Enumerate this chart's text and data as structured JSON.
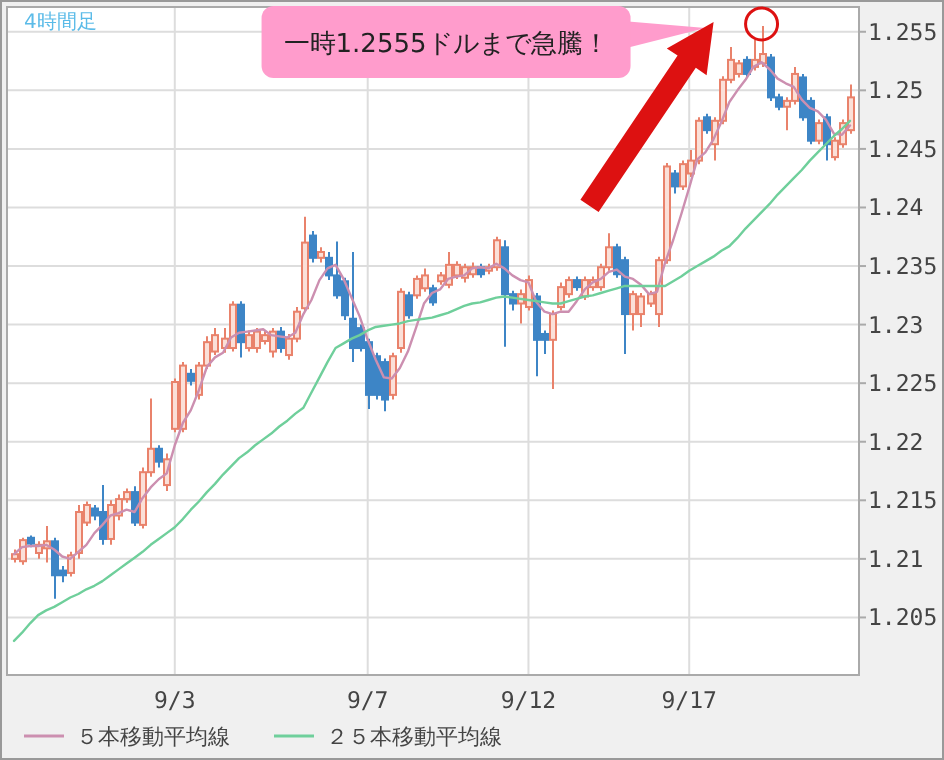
{
  "chart_data": {
    "type": "candlestick",
    "title": "4時間足",
    "annotations": [
      "一時1.2555ドルまで急騰！"
    ],
    "categories": [
      null,
      null,
      null,
      null,
      null,
      null,
      null,
      null,
      null,
      null,
      null,
      null,
      null,
      null,
      null,
      null,
      null,
      null,
      null,
      null,
      "9/3",
      null,
      null,
      null,
      null,
      null,
      null,
      null,
      null,
      null,
      null,
      null,
      null,
      null,
      null,
      null,
      null,
      null,
      null,
      null,
      null,
      null,
      null,
      null,
      "9/7",
      null,
      null,
      null,
      null,
      null,
      null,
      null,
      null,
      null,
      null,
      null,
      null,
      null,
      null,
      null,
      null,
      null,
      null,
      null,
      "9/12",
      null,
      null,
      null,
      null,
      null,
      null,
      null,
      null,
      null,
      null,
      null,
      null,
      null,
      null,
      null,
      null,
      null,
      null,
      null,
      "9/17",
      null,
      null,
      null,
      null,
      null,
      null,
      null,
      null,
      null,
      null,
      null,
      null,
      null,
      null,
      null,
      null,
      null,
      null,
      null,
      null
    ],
    "ohlc": [
      [
        1.21,
        1.2108,
        1.2097,
        1.2104
      ],
      [
        1.2098,
        1.2118,
        1.2095,
        1.2116
      ],
      [
        1.2118,
        1.212,
        1.211,
        1.2113
      ],
      [
        1.2105,
        1.2115,
        1.21,
        1.2112
      ],
      [
        1.2109,
        1.2128,
        1.2097,
        1.2115
      ],
      [
        1.2115,
        1.2118,
        1.2066,
        1.2086
      ],
      [
        1.209,
        1.2094,
        1.208,
        1.2086
      ],
      [
        1.2088,
        1.2106,
        1.2085,
        1.2103
      ],
      [
        1.2105,
        1.2146,
        1.21,
        1.214
      ],
      [
        1.2131,
        1.2149,
        1.2128,
        1.2146
      ],
      [
        1.2143,
        1.2146,
        1.2133,
        1.2137
      ],
      [
        1.214,
        1.2163,
        1.2112,
        1.2117
      ],
      [
        1.2117,
        1.215,
        1.2112,
        1.2146
      ],
      [
        1.2137,
        1.2155,
        1.2133,
        1.2151
      ],
      [
        1.2151,
        1.216,
        1.2148,
        1.2157
      ],
      [
        1.2157,
        1.2162,
        1.2128,
        1.2131
      ],
      [
        1.2129,
        1.2178,
        1.2126,
        1.2174
      ],
      [
        1.2174,
        1.2237,
        1.217,
        1.2194
      ],
      [
        1.2194,
        1.2197,
        1.2178,
        1.2183
      ],
      [
        1.2163,
        1.219,
        1.2158,
        1.2185
      ],
      [
        1.2211,
        1.2254,
        1.2208,
        1.2251
      ],
      [
        1.2211,
        1.2268,
        1.2208,
        1.2265
      ],
      [
        1.2258,
        1.2262,
        1.2248,
        1.2252
      ],
      [
        1.224,
        1.2268,
        1.2236,
        1.2265
      ],
      [
        1.2265,
        1.229,
        1.2262,
        1.2285
      ],
      [
        1.2277,
        1.2297,
        1.2274,
        1.2291
      ],
      [
        1.228,
        1.2297,
        1.2276,
        1.2288
      ],
      [
        1.228,
        1.232,
        1.2277,
        1.2317
      ],
      [
        1.2317,
        1.232,
        1.2272,
        1.2285
      ],
      [
        1.228,
        1.2295,
        1.2277,
        1.2291
      ],
      [
        1.228,
        1.2297,
        1.2276,
        1.2294
      ],
      [
        1.2286,
        1.2295,
        1.2283,
        1.2291
      ],
      [
        1.2277,
        1.2297,
        1.2272,
        1.2294
      ],
      [
        1.2294,
        1.2298,
        1.2276,
        1.228
      ],
      [
        1.2274,
        1.2292,
        1.227,
        1.2288
      ],
      [
        1.2288,
        1.2315,
        1.2285,
        1.2311
      ],
      [
        1.2314,
        1.2392,
        1.2311,
        1.237
      ],
      [
        1.2376,
        1.238,
        1.2353,
        1.2357
      ],
      [
        1.2357,
        1.2366,
        1.2353,
        1.2362
      ],
      [
        1.2357,
        1.2362,
        1.2338,
        1.2342
      ],
      [
        1.2342,
        1.2371,
        1.2322,
        1.2325
      ],
      [
        1.2337,
        1.234,
        1.2304,
        1.2308
      ],
      [
        1.2305,
        1.2362,
        1.2268,
        1.228
      ],
      [
        1.2297,
        1.23,
        1.2277,
        1.228
      ],
      [
        1.2285,
        1.2288,
        1.2228,
        1.224
      ],
      [
        1.2273,
        1.2276,
        1.2236,
        1.224
      ],
      [
        1.2268,
        1.2271,
        1.2226,
        1.2236
      ],
      [
        1.224,
        1.2276,
        1.2236,
        1.2273
      ],
      [
        1.228,
        1.2331,
        1.2276,
        1.2328
      ],
      [
        1.2325,
        1.2328,
        1.2305,
        1.2308
      ],
      [
        1.2325,
        1.2342,
        1.2322,
        1.2339
      ],
      [
        1.2331,
        1.2348,
        1.2328,
        1.2342
      ],
      [
        1.2331,
        1.2334,
        1.2316,
        1.2319
      ],
      [
        1.2337,
        1.2345,
        1.2334,
        1.2342
      ],
      [
        1.2334,
        1.2362,
        1.2331,
        1.2351
      ],
      [
        1.2342,
        1.2354,
        1.2339,
        1.2351
      ],
      [
        1.234,
        1.2352,
        1.2336,
        1.2349
      ],
      [
        1.2343,
        1.2353,
        1.234,
        1.2349
      ],
      [
        1.2349,
        1.2352,
        1.234,
        1.2343
      ],
      [
        1.2346,
        1.2352,
        1.2343,
        1.2349
      ],
      [
        1.2349,
        1.2375,
        1.2346,
        1.2372
      ],
      [
        1.2366,
        1.2372,
        1.2281,
        1.2326
      ],
      [
        1.2326,
        1.2329,
        1.2312,
        1.2318
      ],
      [
        1.2318,
        1.233,
        1.2301,
        1.2326
      ],
      [
        1.2315,
        1.2342,
        1.2312,
        1.2338
      ],
      [
        1.2324,
        1.2327,
        1.2256,
        1.2287
      ],
      [
        1.2292,
        1.2295,
        1.2275,
        1.2287
      ],
      [
        1.2287,
        1.2312,
        1.2245,
        1.2309
      ],
      [
        1.2315,
        1.2336,
        1.2312,
        1.2332
      ],
      [
        1.2326,
        1.2341,
        1.2323,
        1.2338
      ],
      [
        1.2338,
        1.2341,
        1.2329,
        1.2332
      ],
      [
        1.2324,
        1.2341,
        1.2321,
        1.2338
      ],
      [
        1.2332,
        1.2341,
        1.2329,
        1.2338
      ],
      [
        1.2332,
        1.2352,
        1.2329,
        1.2349
      ],
      [
        1.2349,
        1.2378,
        1.2346,
        1.2366
      ],
      [
        1.2366,
        1.2369,
        1.234,
        1.2343
      ],
      [
        1.2355,
        1.2358,
        1.2275,
        1.2309
      ],
      [
        1.2309,
        1.2329,
        1.2295,
        1.2326
      ],
      [
        1.2309,
        1.2327,
        1.2298,
        1.2324
      ],
      [
        1.2318,
        1.2329,
        1.2315,
        1.2326
      ],
      [
        1.2309,
        1.2358,
        1.2298,
        1.2355
      ],
      [
        1.2355,
        1.2438,
        1.2352,
        1.2435
      ],
      [
        1.2429,
        1.2432,
        1.2412,
        1.2418
      ],
      [
        1.2418,
        1.244,
        1.2415,
        1.2437
      ],
      [
        1.2429,
        1.2449,
        1.2426,
        1.244
      ],
      [
        1.244,
        1.2477,
        1.2437,
        1.2474
      ],
      [
        1.2477,
        1.248,
        1.2463,
        1.2466
      ],
      [
        1.2454,
        1.2477,
        1.244,
        1.2474
      ],
      [
        1.2474,
        1.2512,
        1.2471,
        1.2509
      ],
      [
        1.2509,
        1.2537,
        1.2506,
        1.2526
      ],
      [
        1.2514,
        1.2526,
        1.2511,
        1.2523
      ],
      [
        1.2526,
        1.2529,
        1.2511,
        1.2514
      ],
      [
        1.252,
        1.2543,
        1.2517,
        1.2526
      ],
      [
        1.2523,
        1.2555,
        1.252,
        1.2531
      ],
      [
        1.2528,
        1.2531,
        1.2491,
        1.2494
      ],
      [
        1.2494,
        1.2497,
        1.2483,
        1.2486
      ],
      [
        1.2486,
        1.2494,
        1.2466,
        1.2491
      ],
      [
        1.2491,
        1.252,
        1.2488,
        1.2514
      ],
      [
        1.2511,
        1.2514,
        1.2474,
        1.2477
      ],
      [
        1.2491,
        1.2494,
        1.2454,
        1.2457
      ],
      [
        1.2457,
        1.2475,
        1.2454,
        1.2472
      ],
      [
        1.2477,
        1.248,
        1.244,
        1.2454
      ],
      [
        1.2443,
        1.246,
        1.244,
        1.2457
      ],
      [
        1.2454,
        1.2475,
        1.2451,
        1.2472
      ],
      [
        1.2466,
        1.2505,
        1.2463,
        1.2494
      ]
    ],
    "colors": [
      "#e9826b",
      "#e9826b",
      "#3d85c6",
      "#e9826b",
      "#e9826b",
      "#3d85c6",
      "#3d85c6",
      "#e9826b",
      "#e9826b",
      "#e9826b",
      "#3d85c6",
      "#3d85c6",
      "#e9826b",
      "#e9826b",
      "#e9826b",
      "#3d85c6",
      "#e9826b",
      "#e9826b",
      "#3d85c6",
      "#e9826b",
      "#e9826b",
      "#e9826b",
      "#3d85c6",
      "#e9826b",
      "#e9826b",
      "#e9826b",
      "#e9826b",
      "#e9826b",
      "#3d85c6",
      "#e9826b",
      "#e9826b",
      "#e9826b",
      "#e9826b",
      "#3d85c6",
      "#e9826b",
      "#e9826b",
      "#e9826b",
      "#3d85c6",
      "#e9826b",
      "#3d85c6",
      "#3d85c6",
      "#3d85c6",
      "#3d85c6",
      "#3d85c6",
      "#3d85c6",
      "#3d85c6",
      "#3d85c6",
      "#e9826b",
      "#e9826b",
      "#3d85c6",
      "#e9826b",
      "#e9826b",
      "#3d85c6",
      "#e9826b",
      "#e9826b",
      "#e9826b",
      "#e9826b",
      "#e9826b",
      "#3d85c6",
      "#e9826b",
      "#e9826b",
      "#3d85c6",
      "#3d85c6",
      "#e9826b",
      "#e9826b",
      "#3d85c6",
      "#3d85c6",
      "#e9826b",
      "#e9826b",
      "#e9826b",
      "#3d85c6",
      "#e9826b",
      "#e9826b",
      "#e9826b",
      "#e9826b",
      "#3d85c6",
      "#3d85c6",
      "#e9826b",
      "#e9826b",
      "#e9826b",
      "#e9826b",
      "#e9826b",
      "#3d85c6",
      "#e9826b",
      "#e9826b",
      "#e9826b",
      "#3d85c6",
      "#e9826b",
      "#e9826b",
      "#e9826b",
      "#e9826b",
      "#3d85c6",
      "#e9826b",
      "#e9826b",
      "#3d85c6",
      "#3d85c6",
      "#e9826b",
      "#e9826b",
      "#3d85c6",
      "#3d85c6",
      "#e9826b",
      "#3d85c6",
      "#e9826b",
      "#e9826b",
      "#e9826b"
    ],
    "series": [
      {
        "type": "line",
        "name": "５本移動平均線",
        "color": "#cc8fb0",
        "values": [
          1.2104,
          1.211,
          1.2111,
          1.2111,
          1.2112,
          1.2108,
          1.2102,
          1.21,
          1.2106,
          1.2112,
          1.2122,
          1.2129,
          1.2137,
          1.2139,
          1.2142,
          1.214,
          1.2152,
          1.2161,
          1.2168,
          1.2173,
          1.2197,
          1.2216,
          1.2227,
          1.2244,
          1.2264,
          1.2272,
          1.2276,
          1.2289,
          1.2293,
          1.2294,
          1.2295,
          1.2296,
          1.2291,
          1.229,
          1.2289,
          1.2293,
          1.2309,
          1.2321,
          1.2338,
          1.2348,
          1.2351,
          1.2339,
          1.2323,
          1.2307,
          1.2287,
          1.227,
          1.2255,
          1.2254,
          1.2263,
          1.2277,
          1.2297,
          1.2318,
          1.2327,
          1.233,
          1.2339,
          1.2341,
          1.2342,
          1.2348,
          1.2349,
          1.2348,
          1.2352,
          1.2348,
          1.2342,
          1.2338,
          1.2336,
          1.2319,
          1.2311,
          1.2309,
          1.2311,
          1.2311,
          1.232,
          1.233,
          1.2336,
          1.2339,
          1.2345,
          1.2347,
          1.2341,
          1.2339,
          1.2334,
          1.2326,
          1.2328,
          1.2353,
          1.2372,
          1.2394,
          1.2417,
          1.2441,
          1.2447,
          1.2458,
          1.2473,
          1.249,
          1.25,
          1.2509,
          1.252,
          1.2524,
          1.2518,
          1.251,
          1.2506,
          1.2503,
          1.2492,
          1.2485,
          1.2482,
          1.2475,
          1.2463,
          1.2462,
          1.247
        ]
      },
      {
        "type": "line",
        "name": "２５本移動平均線",
        "color": "#6fcf9b",
        "values": [
          1.203,
          1.2037,
          1.2045,
          1.2052,
          1.2056,
          1.2059,
          1.2063,
          1.2067,
          1.207,
          1.2074,
          1.2077,
          1.2081,
          1.2086,
          1.2091,
          1.2096,
          1.2101,
          1.2106,
          1.2112,
          1.2117,
          1.2122,
          1.2127,
          1.2134,
          1.2142,
          1.2149,
          1.2157,
          1.2164,
          1.2172,
          1.2179,
          1.2186,
          1.2191,
          1.2197,
          1.2202,
          1.2207,
          1.2213,
          1.2218,
          1.2224,
          1.2229,
          1.2242,
          1.2255,
          1.2268,
          1.228,
          1.2284,
          1.2288,
          1.2291,
          1.2295,
          1.2298,
          1.2299,
          1.23,
          1.2301,
          1.2303,
          1.2304,
          1.2305,
          1.2306,
          1.2308,
          1.231,
          1.2313,
          1.2316,
          1.2318,
          1.2319,
          1.2321,
          1.2323,
          1.2324,
          1.2323,
          1.2322,
          1.2321,
          1.232,
          1.2319,
          1.2318,
          1.2318,
          1.232,
          1.2322,
          1.2324,
          1.2325,
          1.2327,
          1.2329,
          1.2331,
          1.2333,
          1.2333,
          1.2333,
          1.2333,
          1.2333,
          1.2333,
          1.2337,
          1.2341,
          1.2346,
          1.235,
          1.2354,
          1.2358,
          1.2363,
          1.2367,
          1.2374,
          1.2382,
          1.2389,
          1.2396,
          1.2403,
          1.2411,
          1.2418,
          1.2425,
          1.2432,
          1.244,
          1.2447,
          1.2454,
          1.2461,
          1.2467,
          1.2474
        ]
      }
    ],
    "ylim": [
      1.2,
      1.2572
    ],
    "yticks": [
      1.205,
      1.21,
      1.215,
      1.22,
      1.225,
      1.23,
      1.235,
      1.24,
      1.245,
      1.25,
      1.255
    ],
    "grid": true,
    "legend": "bottom",
    "line_style": "solid"
  }
}
